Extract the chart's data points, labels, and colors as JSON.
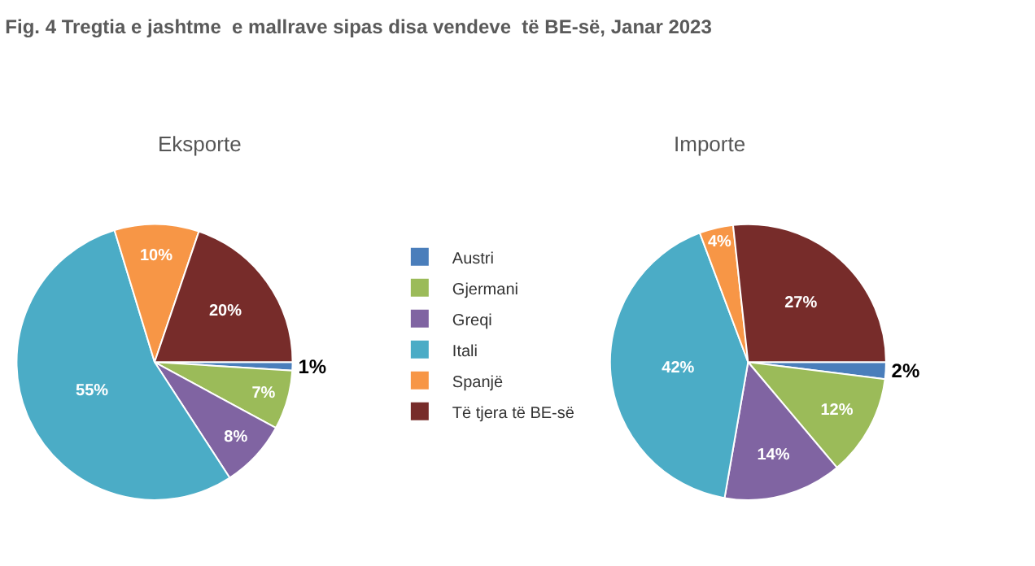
{
  "chart_data": {
    "type": "pie",
    "title": "Fig. 4 Tregtia e jashtme  e mallrave sipas disa vendeve  të BE-së, Janar 2023",
    "categories": [
      "Austri",
      "Gjermani",
      "Greqi",
      "Itali",
      "Spanjë",
      "Të tjera të BE-së"
    ],
    "colors": [
      "#4a7ebb",
      "#9bbb59",
      "#8064a2",
      "#4bacc6",
      "#f79646",
      "#772c2a"
    ],
    "series": [
      {
        "name": "Eksporte",
        "values": [
          1,
          7,
          8,
          55,
          10,
          20
        ],
        "value_labels": [
          "1%",
          "7%",
          "8%",
          "55%",
          "10%",
          "20%"
        ]
      },
      {
        "name": "Importe",
        "values": [
          2,
          12,
          14,
          42,
          4,
          27
        ],
        "value_labels": [
          "2%",
          "12%",
          "14%",
          "42%",
          "4%",
          "27%"
        ]
      }
    ],
    "legend": "center"
  }
}
